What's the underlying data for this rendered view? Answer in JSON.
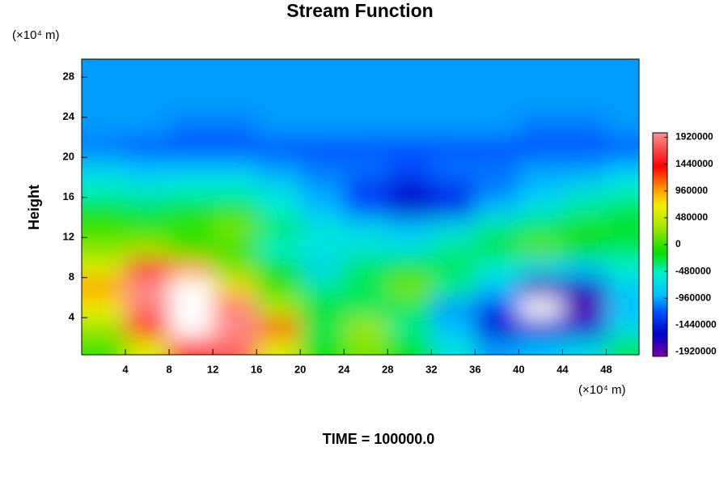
{
  "chart_data": {
    "type": "contour",
    "title": "Stream Function",
    "ylabel": "Height",
    "x_unit": "(×10⁴ m)",
    "y_unit": "(×10⁴ m)",
    "annotation": "TIME = 100000.0",
    "x": [
      2,
      6,
      10,
      14,
      18,
      22,
      26,
      30,
      34,
      38,
      42,
      46,
      50
    ],
    "y": [
      1,
      3,
      5,
      7,
      9,
      11,
      13,
      15,
      17,
      19,
      21,
      23,
      25,
      27,
      29
    ],
    "z": [
      [
        0,
        600000,
        1600000,
        1800000,
        600000,
        -200000,
        200000,
        -200000,
        -600000,
        -1000000,
        -900000,
        -700000,
        -300000
      ],
      [
        300000,
        1400000,
        2200000,
        2000000,
        1200000,
        -300000,
        300000,
        -400000,
        -900000,
        -1600000,
        -1500000,
        -1500000,
        -700000
      ],
      [
        700000,
        1900000,
        2200000,
        1900000,
        400000,
        -200000,
        -300000,
        -300000,
        -1000000,
        -1300000,
        -2100000,
        -1900000,
        -900000
      ],
      [
        1000000,
        2000000,
        2100000,
        800000,
        0,
        -400000,
        -300000,
        200000,
        -400000,
        -900000,
        -1800000,
        -1600000,
        -800000
      ],
      [
        600000,
        1500000,
        1000000,
        200000,
        -200000,
        -700000,
        -300000,
        -200000,
        -300000,
        -500000,
        -700000,
        -800000,
        -500000
      ],
      [
        200000,
        300000,
        -100000,
        0,
        -500000,
        -600000,
        -600000,
        -600000,
        -400000,
        -200000,
        100000,
        -200000,
        -300000
      ],
      [
        0,
        -100000,
        0,
        200000,
        -300000,
        -600000,
        -700000,
        -900000,
        -700000,
        -400000,
        -300000,
        -100000,
        -200000
      ],
      [
        -200000,
        -300000,
        -200000,
        -200000,
        -500000,
        -900000,
        -1200000,
        -1600000,
        -1400000,
        -900000,
        -600000,
        -400000,
        -300000
      ],
      [
        -500000,
        -600000,
        -500000,
        -500000,
        -700000,
        -1000000,
        -1300000,
        -1500000,
        -1300000,
        -1100000,
        -900000,
        -700000,
        -500000
      ],
      [
        -800000,
        -900000,
        -900000,
        -900000,
        -1000000,
        -1100000,
        -1100000,
        -1200000,
        -1100000,
        -1100000,
        -1000000,
        -1000000,
        -900000
      ],
      [
        -1100000,
        -1200000,
        -1200000,
        -1200000,
        -1200000,
        -1200000,
        -1200000,
        -1200000,
        -1200000,
        -1200000,
        -1200000,
        -1200000,
        -1200000
      ],
      [
        -1000000,
        -1000000,
        -1100000,
        -1100000,
        -1000000,
        -1000000,
        -1000000,
        -1000000,
        -1000000,
        -1000000,
        -1100000,
        -1100000,
        -1000000
      ],
      [
        -1000000,
        -1000000,
        -1000000,
        -1000000,
        -1000000,
        -1000000,
        -1000000,
        -1000000,
        -1000000,
        -1000000,
        -1000000,
        -1000000,
        -1000000
      ],
      [
        -1000000,
        -1000000,
        -1000000,
        -1000000,
        -1000000,
        -1000000,
        -1000000,
        -1000000,
        -1000000,
        -1000000,
        -1000000,
        -1000000,
        -1000000
      ],
      [
        -1000000,
        -1000000,
        -1000000,
        -1000000,
        -1000000,
        -1000000,
        -1000000,
        -1000000,
        -1000000,
        -1000000,
        -1000000,
        -1000000,
        -1000000
      ]
    ],
    "xlim": [
      0,
      51
    ],
    "ylim": [
      0.3,
      29.8
    ],
    "xticks": [
      4,
      8,
      12,
      16,
      20,
      24,
      28,
      32,
      36,
      40,
      44,
      48
    ],
    "yticks": [
      4,
      8,
      12,
      16,
      20,
      24,
      28
    ],
    "clim": [
      -2000000,
      2000000
    ],
    "cticks": [
      1920000,
      1440000,
      960000,
      480000,
      0,
      -480000,
      -960000,
      -1440000,
      -1920000
    ],
    "out_of_range_color": "#ffffff",
    "colorscale": [
      {
        "value": -2000000,
        "color": "#7a00a0"
      },
      {
        "value": -1600000,
        "color": "#0000c8"
      },
      {
        "value": -1200000,
        "color": "#0050ff"
      },
      {
        "value": -900000,
        "color": "#00c0ff"
      },
      {
        "value": -500000,
        "color": "#00f0d0"
      },
      {
        "value": -150000,
        "color": "#00e000"
      },
      {
        "value": 300000,
        "color": "#a0e600"
      },
      {
        "value": 700000,
        "color": "#f0f000"
      },
      {
        "value": 1000000,
        "color": "#ff9900"
      },
      {
        "value": 1400000,
        "color": "#ff0000"
      },
      {
        "value": 2000000,
        "color": "#ff9090"
      }
    ]
  }
}
